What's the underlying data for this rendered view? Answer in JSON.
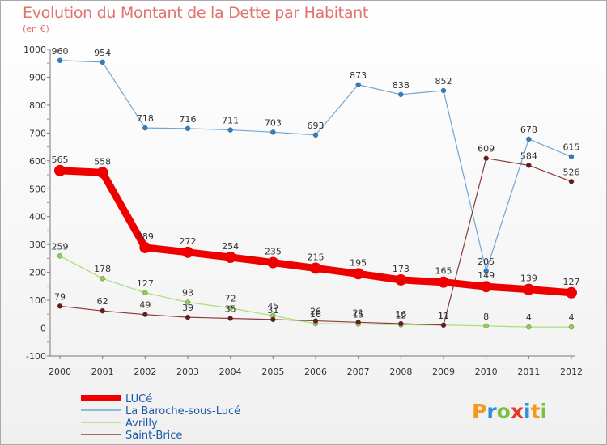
{
  "title": "Evolution du Montant de la Dette par Habitant",
  "subtitle": "(en €)",
  "brand": "Proxiti",
  "chart_data": {
    "type": "line",
    "title": "Evolution du Montant de la Dette par Habitant",
    "unit": "(en €)",
    "x": [
      "2000",
      "2001",
      "2002",
      "2003",
      "2004",
      "2005",
      "2006",
      "2007",
      "2008",
      "2009",
      "2010",
      "2011",
      "2012"
    ],
    "ylim": [
      -100,
      1000
    ],
    "yticks": [
      -100,
      0,
      100,
      200,
      300,
      400,
      500,
      600,
      700,
      800,
      900,
      1000
    ],
    "grid": false,
    "legend_position": "bottom-left",
    "series": [
      {
        "name": "LUCé",
        "color": "#ee0000",
        "marker": "#ee0000",
        "width": 9,
        "emphasis": true,
        "values": [
          565,
          558,
          289,
          272,
          254,
          235,
          215,
          195,
          173,
          165,
          149,
          139,
          127
        ]
      },
      {
        "name": "La Baroche-sous-Lucé",
        "color": "#6ea6d8",
        "marker": "#2a7fc6",
        "width": 1.2,
        "values": [
          960,
          954,
          718,
          716,
          711,
          703,
          693,
          873,
          838,
          852,
          205,
          678,
          615
        ]
      },
      {
        "name": "Avrilly",
        "color": "#a8dd77",
        "marker": "#8ad24a",
        "width": 1.2,
        "values": [
          259,
          178,
          127,
          93,
          72,
          45,
          16,
          15,
          12,
          11,
          8,
          4,
          4
        ]
      },
      {
        "name": "Saint-Brice",
        "color": "#8a3a3a",
        "marker": "#6b1818",
        "width": 1.2,
        "values": [
          79,
          62,
          49,
          39,
          35,
          31,
          26,
          21,
          16,
          11,
          609,
          584,
          526
        ]
      }
    ]
  }
}
